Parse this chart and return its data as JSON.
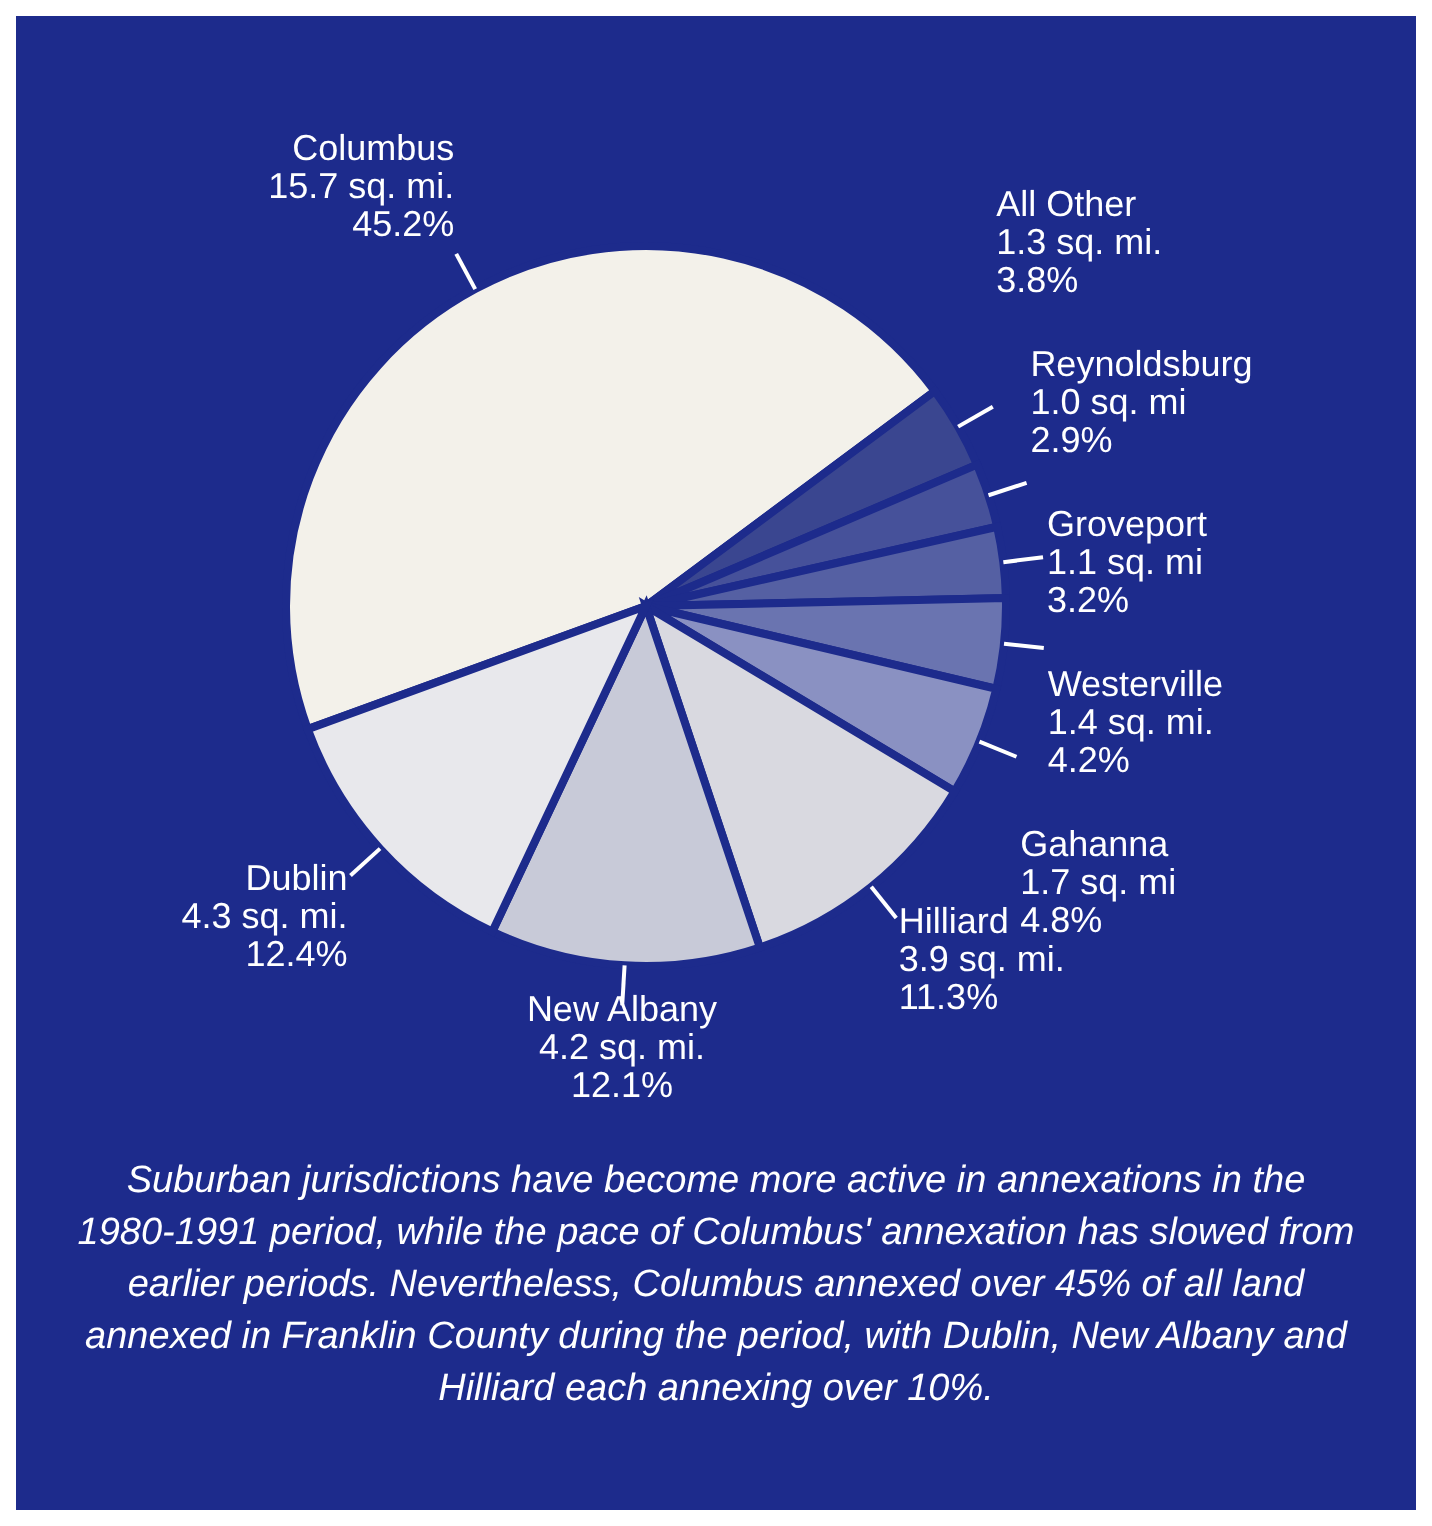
{
  "chart_data": {
    "type": "pie",
    "categories": [
      "Columbus",
      "All Other",
      "Reynoldsburg",
      "Groveport",
      "Westerville",
      "Gahanna",
      "Hilliard",
      "New Albany",
      "Dublin"
    ],
    "values": [
      15.7,
      1.3,
      1.0,
      1.1,
      1.4,
      1.7,
      3.9,
      4.2,
      4.3
    ],
    "value_labels": [
      "15.7 sq. mi.\n45.2%",
      "1.3 sq. mi.\n3.8%",
      "1.0 sq. mi\n2.9%",
      "1.1 sq. mi\n3.2%",
      "1.4 sq. mi.\n4.2%",
      "1.7 sq. mi\n4.8%",
      "3.9 sq. mi.\n11.3%",
      "4.2 sq. mi.\n12.1%",
      "4.3 sq. mi.\n12.4%"
    ],
    "colors": [
      "#f3f1ea",
      "#3a4690",
      "#46519a",
      "#5560a3",
      "#6a74b0",
      "#8a91c2",
      "#d9d9e0",
      "#c8cad8",
      "#e8e8ec"
    ],
    "annotations": [
      "Suburban jurisdictions have become more active in annexations in the 1980-1991 period, while the pace of Columbus' annexation has slowed from earlier periods. Nevertheless, Columbus annexed over 45% of all land annexed in Franklin County during the period, with Dublin, New Albany and Hilliard each annexing over 10%."
    ]
  }
}
